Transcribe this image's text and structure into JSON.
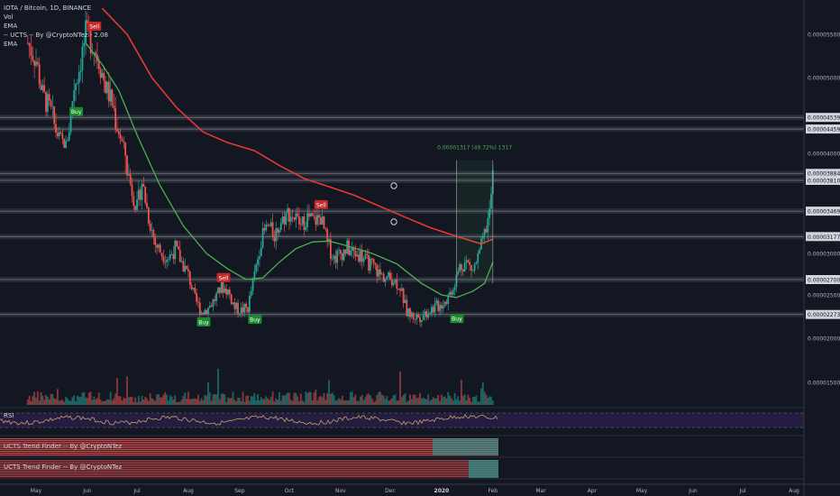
{
  "legend": {
    "symbol": "IOTA / Bitcoin, 1D, BINANCE",
    "vol": "Vol",
    "ema1": "EMA",
    "ucts": "-- UCTS -- By @CryptoNTez - 2.08",
    "ema2": "EMA"
  },
  "rsi_label": "RSI",
  "trend1_label": "UCTS Trend Finder -- By @CryptoNTez",
  "trend2_label": "UCTS Trend Finder -- By @CryptoNTez",
  "measure_label": "0.00001317 (49.72%) 1317",
  "colors": {
    "background": "#131722",
    "up": "#26a69a",
    "down": "#ef5350",
    "ema_fast": "#4caf50",
    "ema_slow": "#e53935",
    "level": "#787b86",
    "rsi": "#c9a063",
    "rsi_band": "#2a1e4a",
    "buy": "#1b8a2e",
    "sell": "#c62828",
    "measure": "#4caf50"
  },
  "chart_data": {
    "type": "candlestick",
    "title": "IOTA / Bitcoin, 1D, BINANCE",
    "y_axis_ticks": [
      "0.00005500",
      "0.00005000",
      "0.00004539",
      "0.00004459",
      "0.00004000",
      "0.00003884",
      "0.00003810",
      "0.00003469",
      "0.00003177",
      "0.00003000",
      "0.00002700",
      "0.00002500",
      "0.00002273",
      "0.00002000",
      "0.00001500"
    ],
    "x_axis_ticks": [
      "May",
      "Jun",
      "Jul",
      "Aug",
      "Sep",
      "Oct",
      "Nov",
      "Dec",
      "2020",
      "Feb",
      "Mar",
      "Apr",
      "May",
      "Jun",
      "Jul",
      "Aug"
    ],
    "horizontal_levels": [
      4.539e-05,
      4.459e-05,
      3.884e-05,
      3.81e-05,
      3.469e-05,
      3.177e-05,
      2.7e-05,
      2.273e-05
    ],
    "close_series": [
      {
        "x": "2019-04-26",
        "y": 5.4e-05
      },
      {
        "x": "2019-05-01",
        "y": 5.2e-05
      },
      {
        "x": "2019-05-05",
        "y": 4.8e-05
      },
      {
        "x": "2019-05-10",
        "y": 4.6e-05
      },
      {
        "x": "2019-05-15",
        "y": 4.3e-05
      },
      {
        "x": "2019-05-19",
        "y": 4.15e-05
      },
      {
        "x": "2019-05-24",
        "y": 4.9e-05
      },
      {
        "x": "2019-05-27",
        "y": 5.1e-05
      },
      {
        "x": "2019-05-31",
        "y": 5.5e-05
      },
      {
        "x": "2019-06-04",
        "y": 5.4e-05
      },
      {
        "x": "2019-06-08",
        "y": 5.2e-05
      },
      {
        "x": "2019-06-12",
        "y": 4.9e-05
      },
      {
        "x": "2019-06-16",
        "y": 4.7e-05
      },
      {
        "x": "2019-06-20",
        "y": 4.4e-05
      },
      {
        "x": "2019-06-24",
        "y": 4e-05
      },
      {
        "x": "2019-06-28",
        "y": 3.7e-05
      },
      {
        "x": "2019-07-01",
        "y": 3.5e-05
      },
      {
        "x": "2019-07-04",
        "y": 3.8e-05
      },
      {
        "x": "2019-07-08",
        "y": 3.4e-05
      },
      {
        "x": "2019-07-12",
        "y": 3.1e-05
      },
      {
        "x": "2019-07-16",
        "y": 3e-05
      },
      {
        "x": "2019-07-20",
        "y": 2.95e-05
      },
      {
        "x": "2019-07-24",
        "y": 3.05e-05
      },
      {
        "x": "2019-07-28",
        "y": 2.9e-05
      },
      {
        "x": "2019-08-01",
        "y": 2.75e-05
      },
      {
        "x": "2019-08-05",
        "y": 2.45e-05
      },
      {
        "x": "2019-08-09",
        "y": 2.3e-05
      },
      {
        "x": "2019-08-13",
        "y": 2.35e-05
      },
      {
        "x": "2019-08-17",
        "y": 2.45e-05
      },
      {
        "x": "2019-08-21",
        "y": 2.6e-05
      },
      {
        "x": "2019-08-25",
        "y": 2.55e-05
      },
      {
        "x": "2019-08-29",
        "y": 2.35e-05
      },
      {
        "x": "2019-09-02",
        "y": 2.32e-05
      },
      {
        "x": "2019-09-06",
        "y": 2.35e-05
      },
      {
        "x": "2019-09-10",
        "y": 2.75e-05
      },
      {
        "x": "2019-09-14",
        "y": 3.15e-05
      },
      {
        "x": "2019-09-18",
        "y": 3.3e-05
      },
      {
        "x": "2019-09-22",
        "y": 3.2e-05
      },
      {
        "x": "2019-09-26",
        "y": 3.35e-05
      },
      {
        "x": "2019-09-30",
        "y": 3.45e-05
      },
      {
        "x": "2019-10-04",
        "y": 3.4e-05
      },
      {
        "x": "2019-10-08",
        "y": 3.3e-05
      },
      {
        "x": "2019-10-12",
        "y": 3.4e-05
      },
      {
        "x": "2019-10-16",
        "y": 3.35e-05
      },
      {
        "x": "2019-10-20",
        "y": 3.4e-05
      },
      {
        "x": "2019-10-24",
        "y": 3.1e-05
      },
      {
        "x": "2019-10-28",
        "y": 2.95e-05
      },
      {
        "x": "2019-11-01",
        "y": 3e-05
      },
      {
        "x": "2019-11-05",
        "y": 3.05e-05
      },
      {
        "x": "2019-11-09",
        "y": 3e-05
      },
      {
        "x": "2019-11-13",
        "y": 2.98e-05
      },
      {
        "x": "2019-11-17",
        "y": 2.9e-05
      },
      {
        "x": "2019-11-21",
        "y": 2.85e-05
      },
      {
        "x": "2019-11-25",
        "y": 2.75e-05
      },
      {
        "x": "2019-11-29",
        "y": 2.72e-05
      },
      {
        "x": "2019-12-03",
        "y": 2.7e-05
      },
      {
        "x": "2019-12-07",
        "y": 2.6e-05
      },
      {
        "x": "2019-12-11",
        "y": 2.3e-05
      },
      {
        "x": "2019-12-15",
        "y": 2.25e-05
      },
      {
        "x": "2019-12-19",
        "y": 2.25e-05
      },
      {
        "x": "2019-12-23",
        "y": 2.3e-05
      },
      {
        "x": "2019-12-27",
        "y": 2.35e-05
      },
      {
        "x": "2019-12-31",
        "y": 2.38e-05
      },
      {
        "x": "2020-01-04",
        "y": 2.45e-05
      },
      {
        "x": "2020-01-08",
        "y": 2.6e-05
      },
      {
        "x": "2020-01-12",
        "y": 2.85e-05
      },
      {
        "x": "2020-01-16",
        "y": 2.9e-05
      },
      {
        "x": "2020-01-20",
        "y": 2.8e-05
      },
      {
        "x": "2020-01-24",
        "y": 3e-05
      },
      {
        "x": "2020-01-27",
        "y": 3.2e-05
      },
      {
        "x": "2020-01-30",
        "y": 3.45e-05
      },
      {
        "x": "2020-02-01",
        "y": 3.85e-05
      }
    ],
    "ema_fast": [
      {
        "x": "2019-05-31",
        "y": 5.4e-05
      },
      {
        "x": "2019-06-10",
        "y": 5.15e-05
      },
      {
        "x": "2019-06-20",
        "y": 4.85e-05
      },
      {
        "x": "2019-07-01",
        "y": 4.35e-05
      },
      {
        "x": "2019-07-15",
        "y": 3.75e-05
      },
      {
        "x": "2019-07-29",
        "y": 3.3e-05
      },
      {
        "x": "2019-08-12",
        "y": 3e-05
      },
      {
        "x": "2019-08-25",
        "y": 2.82e-05
      },
      {
        "x": "2019-09-05",
        "y": 2.7e-05
      },
      {
        "x": "2019-09-15",
        "y": 2.72e-05
      },
      {
        "x": "2019-09-25",
        "y": 2.9e-05
      },
      {
        "x": "2019-10-05",
        "y": 3.05e-05
      },
      {
        "x": "2019-10-15",
        "y": 3.12e-05
      },
      {
        "x": "2019-10-25",
        "y": 3.13e-05
      },
      {
        "x": "2019-11-05",
        "y": 3.08e-05
      },
      {
        "x": "2019-11-20",
        "y": 3e-05
      },
      {
        "x": "2019-12-05",
        "y": 2.88e-05
      },
      {
        "x": "2019-12-20",
        "y": 2.65e-05
      },
      {
        "x": "2020-01-01",
        "y": 2.5e-05
      },
      {
        "x": "2020-01-10",
        "y": 2.47e-05
      },
      {
        "x": "2020-01-20",
        "y": 2.55e-05
      },
      {
        "x": "2020-01-27",
        "y": 2.65e-05
      },
      {
        "x": "2020-02-01",
        "y": 2.9e-05
      }
    ],
    "ema_slow": [
      {
        "x": "2019-06-10",
        "y": 5.8e-05
      },
      {
        "x": "2019-06-25",
        "y": 5.5e-05
      },
      {
        "x": "2019-07-10",
        "y": 5e-05
      },
      {
        "x": "2019-07-25",
        "y": 4.65e-05
      },
      {
        "x": "2019-08-10",
        "y": 4.4e-05
      },
      {
        "x": "2019-08-25",
        "y": 4.2e-05
      },
      {
        "x": "2019-09-10",
        "y": 4.05e-05
      },
      {
        "x": "2019-09-25",
        "y": 3.93e-05
      },
      {
        "x": "2019-10-10",
        "y": 3.83e-05
      },
      {
        "x": "2019-10-25",
        "y": 3.74e-05
      },
      {
        "x": "2019-11-10",
        "y": 3.64e-05
      },
      {
        "x": "2019-11-25",
        "y": 3.52e-05
      },
      {
        "x": "2019-12-10",
        "y": 3.4e-05
      },
      {
        "x": "2019-12-25",
        "y": 3.28e-05
      },
      {
        "x": "2020-01-10",
        "y": 3.18e-05
      },
      {
        "x": "2020-01-25",
        "y": 3.1e-05
      },
      {
        "x": "2020-02-01",
        "y": 3.15e-05
      }
    ],
    "signals": [
      {
        "label": "Buy",
        "date": "2019-05-25",
        "price": 4.7e-05
      },
      {
        "label": "Sell",
        "date": "2019-06-05",
        "price": 5.5e-05
      },
      {
        "label": "Sell",
        "date": "2019-08-22",
        "price": 2.62e-05
      },
      {
        "label": "Buy",
        "date": "2019-08-10",
        "price": 2.28e-05
      },
      {
        "label": "Buy",
        "date": "2019-09-10",
        "price": 2.31e-05
      },
      {
        "label": "Sell",
        "date": "2019-10-20",
        "price": 3.45e-05
      },
      {
        "label": "Buy",
        "date": "2020-01-10",
        "price": 2.32e-05
      }
    ],
    "measure": {
      "from_date": "2020-01-10",
      "to_date": "2020-02-01",
      "from_price": 2.65e-05,
      "to_price": 3.96e-05
    }
  }
}
